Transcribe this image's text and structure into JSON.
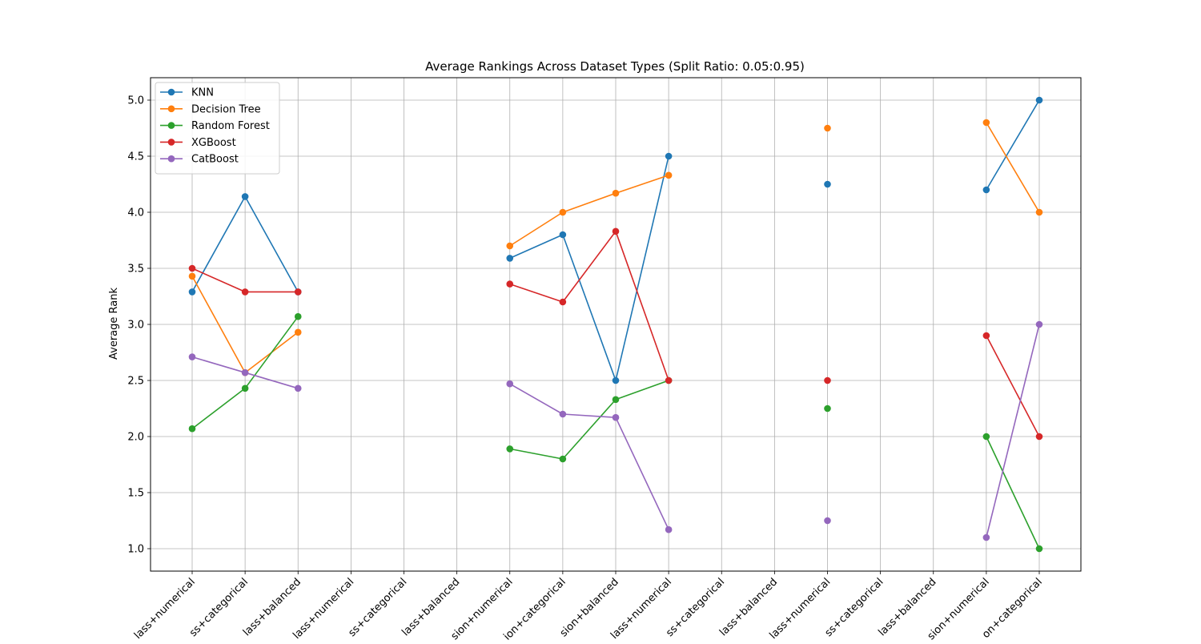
{
  "chart_data": {
    "type": "line",
    "title": "Average Rankings Across Dataset Types (Split Ratio: 0.05:0.95)",
    "xlabel": "",
    "ylabel": "Average Rank",
    "ylim": [
      0.8,
      5.2
    ],
    "yticks": [
      "1.0",
      "1.5",
      "2.0",
      "2.5",
      "3.0",
      "3.5",
      "4.0",
      "4.5",
      "5.0"
    ],
    "grid": true,
    "legend_position": "top-left",
    "categories": [
      "lass+numerical",
      "ss+categorical",
      "lass+balanced",
      "lass+numerical",
      "ss+categorical",
      "lass+balanced",
      "sion+numerical",
      "ion+categorical",
      "sion+balanced",
      "lass+numerical",
      "ss+categorical",
      "lass+balanced",
      "lass+numerical",
      "ss+categorical",
      "lass+balanced",
      "sion+numerical",
      "on+categorical"
    ],
    "series": [
      {
        "name": "KNN",
        "color": "#1f77b4",
        "values": [
          3.29,
          4.14,
          3.29,
          null,
          null,
          null,
          3.59,
          3.8,
          2.5,
          4.5,
          null,
          null,
          4.25,
          null,
          null,
          4.2,
          5.0
        ]
      },
      {
        "name": "Decision Tree",
        "color": "#ff7f0e",
        "values": [
          3.43,
          2.57,
          2.93,
          null,
          null,
          null,
          3.7,
          4.0,
          4.17,
          4.33,
          null,
          null,
          4.75,
          null,
          null,
          4.8,
          4.0
        ]
      },
      {
        "name": "Random Forest",
        "color": "#2ca02c",
        "values": [
          2.07,
          2.43,
          3.07,
          null,
          null,
          null,
          1.89,
          1.8,
          2.33,
          2.5,
          null,
          null,
          2.25,
          null,
          null,
          2.0,
          1.0
        ]
      },
      {
        "name": "XGBoost",
        "color": "#d62728",
        "values": [
          3.5,
          3.29,
          3.29,
          null,
          null,
          null,
          3.36,
          3.2,
          3.83,
          2.5,
          null,
          null,
          2.5,
          null,
          null,
          2.9,
          2.0
        ]
      },
      {
        "name": "CatBoost",
        "color": "#9467bd",
        "values": [
          2.71,
          2.57,
          2.43,
          null,
          null,
          null,
          2.47,
          2.2,
          2.17,
          1.17,
          null,
          null,
          1.25,
          null,
          null,
          1.1,
          3.0
        ]
      }
    ]
  }
}
